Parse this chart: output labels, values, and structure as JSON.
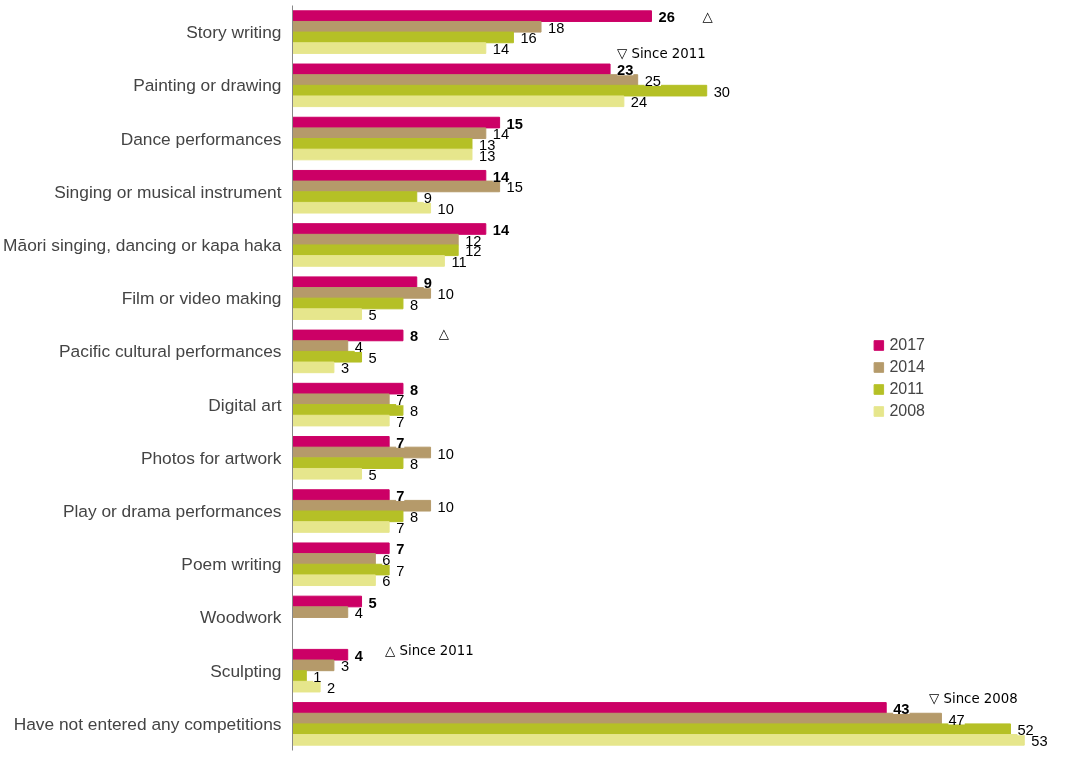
{
  "chart_data": {
    "type": "bar",
    "orientation": "horizontal",
    "categories": [
      "Story writing",
      "Painting or drawing",
      "Dance performances",
      "Singing or musical instrument",
      "Māori singing, dancing or kapa haka",
      "Film or video making",
      "Pacific cultural performances",
      "Digital art",
      "Photos for artwork",
      "Play or drama performances",
      "Poem writing",
      "Woodwork",
      "Sculpting",
      "Have not entered any competitions"
    ],
    "series": [
      {
        "name": "2017",
        "color": "#cc0066",
        "values": [
          26,
          23,
          15,
          14,
          14,
          9,
          8,
          8,
          7,
          7,
          7,
          5,
          4,
          43
        ]
      },
      {
        "name": "2014",
        "color": "#b59a6a",
        "values": [
          18,
          25,
          14,
          15,
          12,
          10,
          4,
          7,
          10,
          10,
          6,
          4,
          3,
          47
        ]
      },
      {
        "name": "2011",
        "color": "#b5c026",
        "values": [
          16,
          30,
          13,
          9,
          12,
          8,
          5,
          8,
          8,
          8,
          7,
          null,
          1,
          52
        ]
      },
      {
        "name": "2008",
        "color": "#e6e68c",
        "values": [
          14,
          24,
          13,
          10,
          11,
          5,
          3,
          7,
          5,
          7,
          6,
          null,
          2,
          53
        ]
      }
    ],
    "annotations": [
      "△",
      "▽ Since 2011",
      "△",
      "△ Since 2011",
      "▽ Since 2008"
    ],
    "data_labels": true,
    "grid": false,
    "legend": "right"
  }
}
